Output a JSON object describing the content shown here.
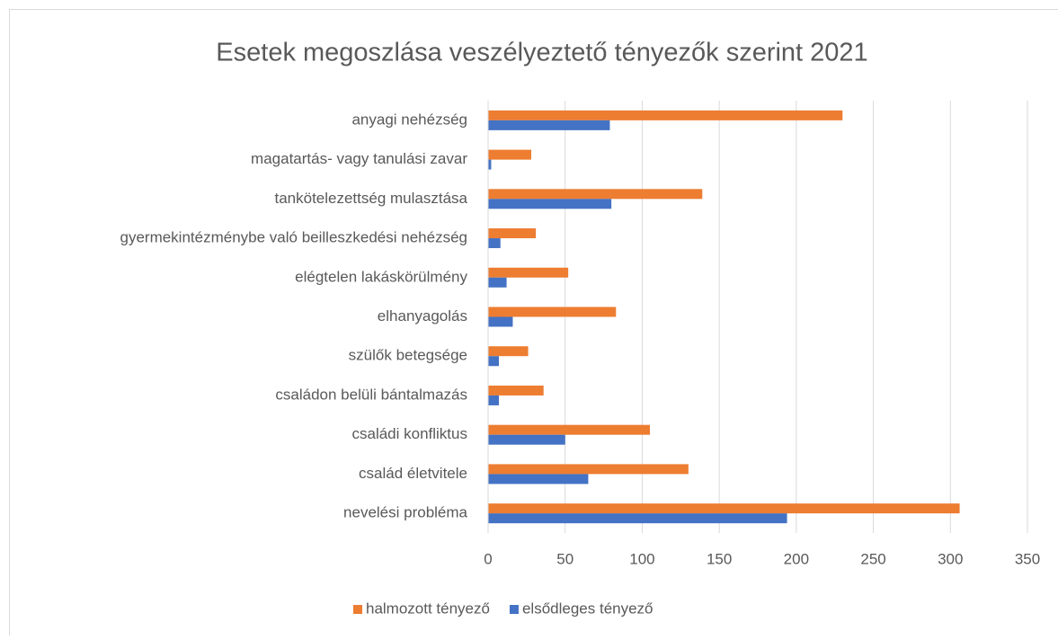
{
  "chart_data": {
    "type": "barh",
    "title": "Esetek megoszlása veszélyeztető tényezők szerint 2021",
    "categories": [
      "anyagi nehézség",
      "magatartás- vagy tanulási zavar",
      "tankötelezettség mulasztása",
      "gyermekintézménybe való beilleszkedési nehézség",
      "elégtelen lakáskörülmény",
      "elhanyagolás",
      "szülők betegsége",
      "családon belüli bántalmazás",
      "családi konfliktus",
      "család életvitele",
      "nevelési probléma"
    ],
    "series": [
      {
        "name": "halmozott tényező",
        "color": "#ed7d31",
        "values": [
          230,
          28,
          139,
          31,
          52,
          83,
          26,
          36,
          105,
          130,
          306
        ]
      },
      {
        "name": "elsődleges tényező",
        "color": "#4472c4",
        "values": [
          79,
          2,
          80,
          8,
          12,
          16,
          7,
          7,
          50,
          65,
          194
        ]
      }
    ],
    "xlim": [
      0,
      350
    ],
    "xticks": [
      0,
      50,
      100,
      150,
      200,
      250,
      300,
      350
    ],
    "grid": true,
    "legend": "bottom"
  }
}
